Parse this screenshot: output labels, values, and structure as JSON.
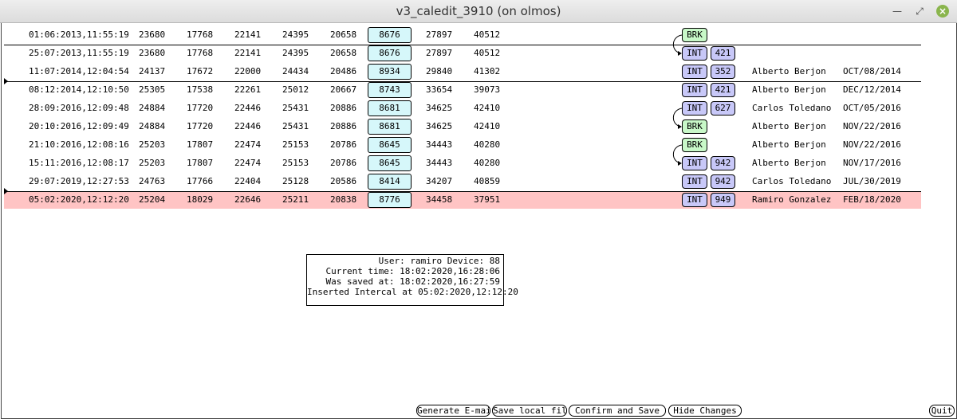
{
  "window": {
    "title": "v3_caledit_3910 (on olmos)"
  },
  "rows": [
    {
      "date": "01:06:2013,11:55:19",
      "v1": "23680",
      "v2": "17768",
      "v3": "22141",
      "v4": "24395",
      "v5": "20658",
      "v6": "8676",
      "v7": "27897",
      "v8": "40512",
      "type": "BRK",
      "num": "",
      "person": "",
      "pdate": ""
    },
    {
      "date": "25:07:2013,11:55:19",
      "v1": "23680",
      "v2": "17768",
      "v3": "22141",
      "v4": "24395",
      "v5": "20658",
      "v6": "8676",
      "v7": "27897",
      "v8": "40512",
      "type": "INT",
      "num": "421",
      "person": "",
      "pdate": ""
    },
    {
      "date": "11:07:2014,12:04:54",
      "v1": "24137",
      "v2": "17672",
      "v3": "22000",
      "v4": "24434",
      "v5": "20486",
      "v6": "8934",
      "v7": "29840",
      "v8": "41302",
      "type": "INT",
      "num": "352",
      "person": "Alberto Berjon",
      "pdate": "OCT/08/2014"
    },
    {
      "date": "08:12:2014,12:10:50",
      "v1": "25305",
      "v2": "17538",
      "v3": "22261",
      "v4": "25012",
      "v5": "20667",
      "v6": "8743",
      "v7": "33654",
      "v8": "39073",
      "type": "INT",
      "num": "421",
      "person": "Alberto Berjon",
      "pdate": "DEC/12/2014"
    },
    {
      "date": "28:09:2016,12:09:48",
      "v1": "24884",
      "v2": "17720",
      "v3": "22446",
      "v4": "25431",
      "v5": "20886",
      "v6": "8681",
      "v7": "34625",
      "v8": "42410",
      "type": "INT",
      "num": "627",
      "person": "Carlos Toledano",
      "pdate": "OCT/05/2016"
    },
    {
      "date": "20:10:2016,12:09:49",
      "v1": "24884",
      "v2": "17720",
      "v3": "22446",
      "v4": "25431",
      "v5": "20886",
      "v6": "8681",
      "v7": "34625",
      "v8": "42410",
      "type": "BRK",
      "num": "",
      "person": "Alberto Berjon",
      "pdate": "NOV/22/2016"
    },
    {
      "date": "21:10:2016,12:08:16",
      "v1": "25203",
      "v2": "17807",
      "v3": "22474",
      "v4": "25153",
      "v5": "20786",
      "v6": "8645",
      "v7": "34443",
      "v8": "40280",
      "type": "BRK",
      "num": "",
      "person": "Alberto Berjon",
      "pdate": "NOV/22/2016"
    },
    {
      "date": "15:11:2016,12:08:17",
      "v1": "25203",
      "v2": "17807",
      "v3": "22474",
      "v4": "25153",
      "v5": "20786",
      "v6": "8645",
      "v7": "34443",
      "v8": "40280",
      "type": "INT",
      "num": "942",
      "person": "Alberto Berjon",
      "pdate": "NOV/17/2016"
    },
    {
      "date": "29:07:2019,12:27:53",
      "v1": "24763",
      "v2": "17766",
      "v3": "22404",
      "v4": "25128",
      "v5": "20586",
      "v6": "8414",
      "v7": "34207",
      "v8": "40859",
      "type": "INT",
      "num": "942",
      "person": "Carlos Toledano",
      "pdate": "JUL/30/2019"
    },
    {
      "date": "05:02:2020,12:12:20",
      "v1": "25204",
      "v2": "18029",
      "v3": "22646",
      "v4": "25211",
      "v5": "20838",
      "v6": "8776",
      "v7": "34458",
      "v8": "37951",
      "type": "INT",
      "num": "949",
      "person": "Ramiro Gonzalez",
      "pdate": "FEB/18/2020",
      "highlighted": true
    }
  ],
  "info": {
    "line1": "User: ramiro Device: 88",
    "line2": "Current time: 18:02:2020,16:28:06",
    "line3": "Was saved at: 18:02:2020,16:27:59",
    "line4": "Inserted Intercal at 05:02:2020,12:12:20"
  },
  "buttons": {
    "email": "Generate E-mail",
    "save_local": "Save local file",
    "confirm": "Confirm and Save",
    "hide": "Hide Changes",
    "quit": "Quit"
  },
  "colors": {
    "int_chip": "#c8c8f8",
    "brk_chip": "#c8f8c8",
    "value_box": "#d6f7fa",
    "highlight_row": "#ffc4c4"
  },
  "icons": {
    "minimize": "minimize-icon",
    "maximize": "maximize-icon",
    "close": "close-icon"
  }
}
